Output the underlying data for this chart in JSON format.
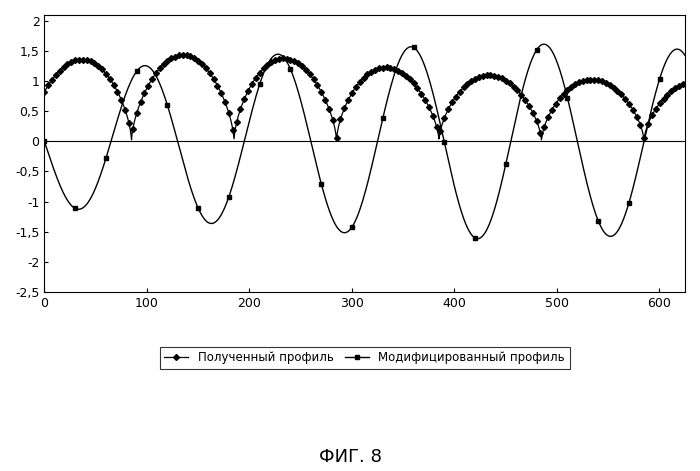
{
  "title": "ФИГ. 8",
  "xlim": [
    0,
    625
  ],
  "ylim": [
    -2.5,
    2.1
  ],
  "yticks": [
    -2.5,
    -2,
    -1.5,
    -1,
    -0.5,
    0,
    0.5,
    1,
    1.5,
    2
  ],
  "xticks": [
    0,
    100,
    200,
    300,
    400,
    500,
    600
  ],
  "legend1": "Полученный профиль",
  "legend2": "Модифицированный профиль",
  "background_color": "#ffffff",
  "line_color": "#000000"
}
